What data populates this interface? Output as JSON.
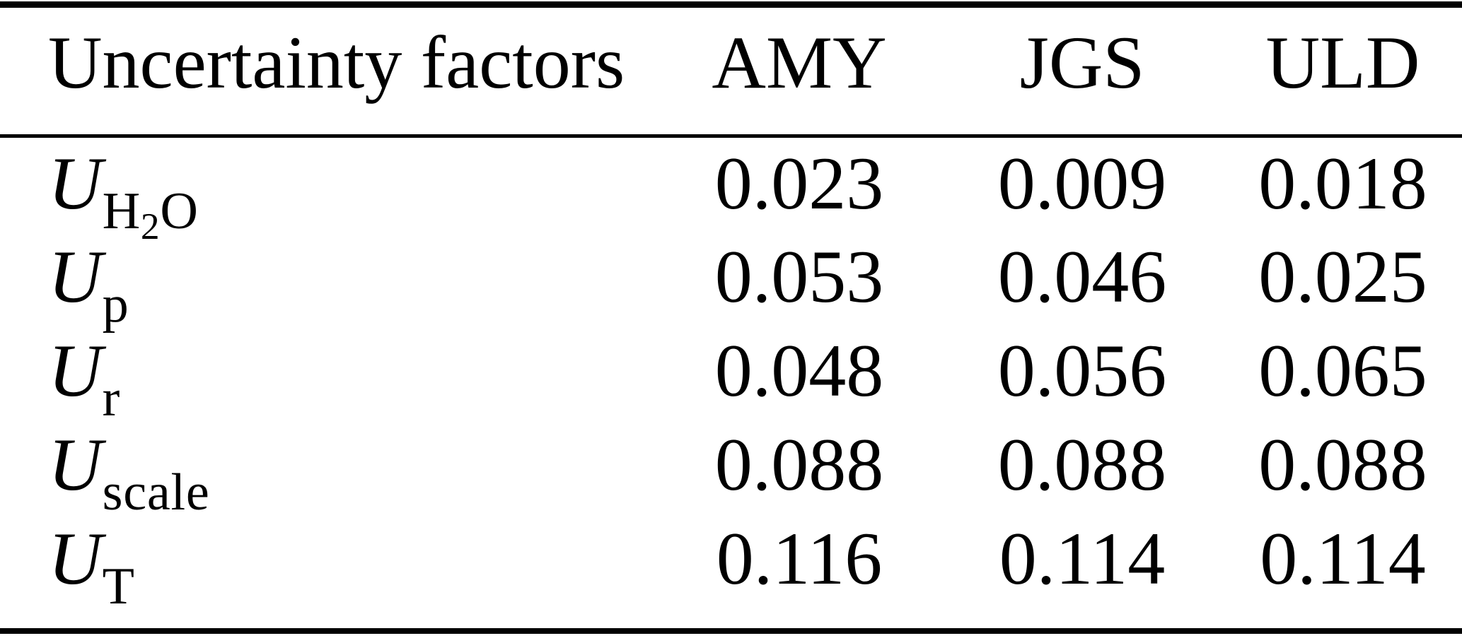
{
  "colors": {
    "background": "#ffffff",
    "text": "#000000",
    "rule": "#000000"
  },
  "table": {
    "columns": [
      "Uncertainty factors",
      "AMY",
      "JGS",
      "ULD"
    ],
    "rows": [
      {
        "symbol": "U",
        "subscript": "H2O",
        "values": [
          "0.023",
          "0.009",
          "0.018"
        ]
      },
      {
        "symbol": "U",
        "subscript": "p",
        "values": [
          "0.053",
          "0.046",
          "0.025"
        ]
      },
      {
        "symbol": "U",
        "subscript": "r",
        "values": [
          "0.048",
          "0.056",
          "0.065"
        ]
      },
      {
        "symbol": "U",
        "subscript": "scale",
        "values": [
          "0.088",
          "0.088",
          "0.088"
        ]
      },
      {
        "symbol": "U",
        "subscript": "T",
        "values": [
          "0.116",
          "0.114",
          "0.114"
        ]
      }
    ]
  }
}
